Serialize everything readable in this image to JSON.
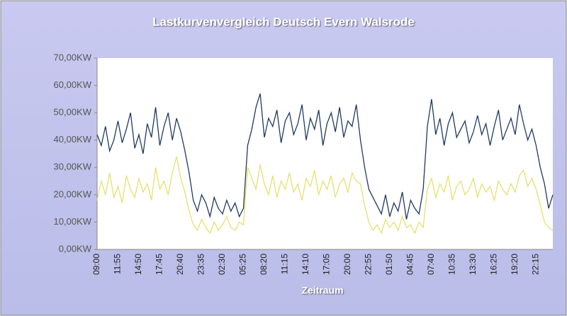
{
  "chart_data": {
    "type": "line",
    "title": "Lastkurvenvergleich Deutsch Evern Walsrode",
    "x_label": "Zeitraum",
    "categories": [
      "09:00",
      null,
      null,
      null,
      null,
      "11:55",
      null,
      null,
      null,
      null,
      "14:50",
      null,
      null,
      null,
      null,
      "17:45",
      null,
      null,
      null,
      null,
      "20:40",
      null,
      null,
      null,
      null,
      "23:35",
      null,
      null,
      null,
      null,
      "02:30",
      null,
      null,
      null,
      null,
      "05:25",
      null,
      null,
      null,
      null,
      "08:20",
      null,
      null,
      null,
      null,
      "11:15",
      null,
      null,
      null,
      null,
      "14:10",
      null,
      null,
      null,
      null,
      "17:05",
      null,
      null,
      null,
      null,
      "20:00",
      null,
      null,
      null,
      null,
      "22:55",
      null,
      null,
      null,
      null,
      "01:50",
      null,
      null,
      null,
      null,
      "04:45",
      null,
      null,
      null,
      null,
      "07:40",
      null,
      null,
      null,
      null,
      "10:35",
      null,
      null,
      null,
      null,
      "13:30",
      null,
      null,
      null,
      null,
      "16:25",
      null,
      null,
      null,
      null,
      "19:20",
      null,
      null,
      null,
      null,
      "22:15",
      null,
      null,
      null,
      null
    ],
    "series": [
      {
        "color": "#1f3a60",
        "values": [
          42,
          38,
          45,
          36,
          40,
          47,
          39,
          44,
          50,
          37,
          42,
          35,
          46,
          41,
          52,
          38,
          45,
          50,
          40,
          48,
          43,
          36,
          28,
          18,
          14,
          20,
          17,
          12,
          19,
          15,
          13,
          18,
          14,
          17,
          12,
          15,
          38,
          44,
          52,
          57,
          41,
          48,
          45,
          51,
          39,
          47,
          50,
          42,
          46,
          53,
          40,
          48,
          44,
          51,
          38,
          46,
          50,
          43,
          52,
          41,
          47,
          45,
          53,
          40,
          30,
          22,
          19,
          16,
          13,
          20,
          12,
          17,
          14,
          21,
          11,
          18,
          15,
          13,
          22,
          45,
          55,
          42,
          48,
          38,
          46,
          50,
          41,
          44,
          47,
          39,
          43,
          49,
          42,
          46,
          38,
          45,
          51,
          40,
          44,
          48,
          42,
          53,
          46,
          40,
          44,
          38,
          30,
          24,
          15,
          20
        ]
      },
      {
        "color": "#e6e070",
        "values": [
          18,
          25,
          20,
          28,
          19,
          23,
          17,
          27,
          22,
          19,
          26,
          21,
          24,
          18,
          30,
          22,
          25,
          20,
          28,
          34,
          26,
          21,
          14,
          9,
          7,
          11,
          8,
          6,
          10,
          7,
          9,
          12,
          8,
          7,
          10,
          9,
          30,
          26,
          22,
          31,
          24,
          20,
          27,
          19,
          25,
          22,
          28,
          21,
          24,
          18,
          26,
          23,
          29,
          20,
          25,
          22,
          27,
          19,
          24,
          26,
          21,
          28,
          25,
          24,
          16,
          10,
          7,
          9,
          6,
          11,
          8,
          10,
          7,
          12,
          8,
          9,
          6,
          10,
          8,
          22,
          26,
          19,
          24,
          21,
          27,
          18,
          23,
          25,
          20,
          22,
          26,
          19,
          24,
          21,
          23,
          18,
          25,
          22,
          20,
          24,
          21,
          27,
          29,
          23,
          26,
          22,
          16,
          10,
          8,
          7
        ]
      }
    ],
    "ylim": [
      0,
      70
    ],
    "yticks": [
      {
        "value": 0,
        "label": "0,00KW"
      },
      {
        "value": 10,
        "label": "10,00KW"
      },
      {
        "value": 20,
        "label": "20,00KW"
      },
      {
        "value": 30,
        "label": "30,00KW"
      },
      {
        "value": 40,
        "label": "40,00KW"
      },
      {
        "value": 50,
        "label": "50,00KW"
      },
      {
        "value": 60,
        "label": "60,00KW"
      },
      {
        "value": 70,
        "label": "70,00KW"
      }
    ]
  }
}
